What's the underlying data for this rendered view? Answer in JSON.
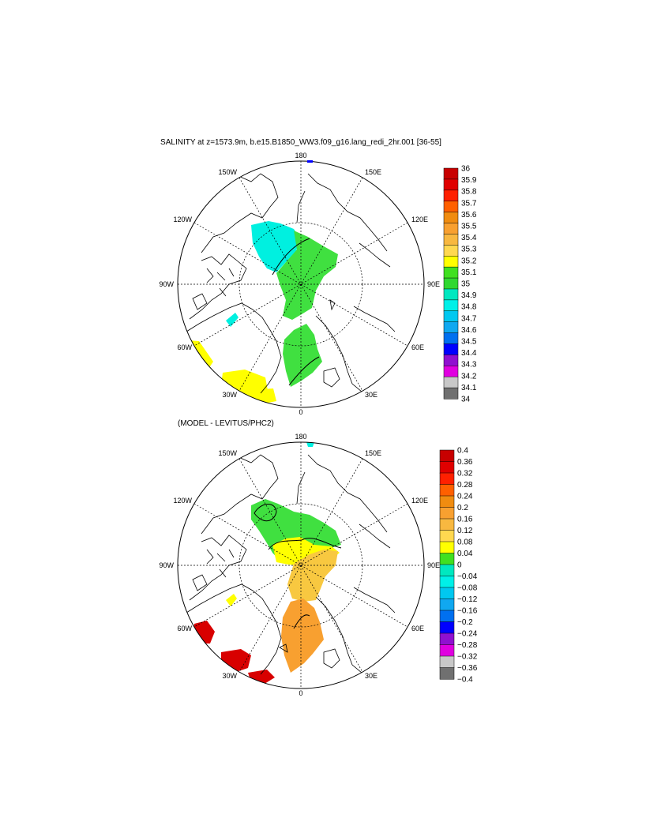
{
  "top_panel": {
    "title": "SALINITY at z=1573.9m, b.e15.B1850_WW3.f09_g16.lang_redi_2hr.001 [36-55]",
    "lon_labels": {
      "n": "180",
      "s": "0",
      "w": "90W",
      "e": "90E",
      "nw1": "150W",
      "nw2": "120W",
      "sw1": "60W",
      "sw2": "30W",
      "ne1": "150E",
      "ne2": "120E",
      "se1": "60E",
      "se2": "30E"
    },
    "colorbar": {
      "labels": [
        "36",
        "35.9",
        "35.8",
        "35.7",
        "35.6",
        "35.5",
        "35.4",
        "35.3",
        "35.2",
        "35.1",
        "35",
        "34.9",
        "34.8",
        "34.7",
        "34.6",
        "34.5",
        "34.4",
        "34.3",
        "34.2",
        "34.1",
        "34"
      ],
      "colors": [
        "#c80000",
        "#e00000",
        "#ff2000",
        "#ff6000",
        "#f08c10",
        "#f8a030",
        "#f8b840",
        "#ffd850",
        "#ffff00",
        "#40e020",
        "#30d830",
        "#00e8c0",
        "#00f0e8",
        "#00c8f0",
        "#10a8f0",
        "#0070f0",
        "#0000ff",
        "#9010d0",
        "#e000e0",
        "#c8c8c8",
        "#707070"
      ]
    }
  },
  "bottom_panel": {
    "title": "(MODEL - LEVITUS/PHC2)",
    "lon_labels": {
      "n": "180",
      "s": "0",
      "w": "90W",
      "e": "90E",
      "nw1": "150W",
      "nw2": "120W",
      "sw1": "60W",
      "sw2": "30W",
      "ne1": "150E",
      "ne2": "120E",
      "se1": "60E",
      "se2": "30E"
    },
    "colorbar": {
      "labels": [
        "0.4",
        "0.36",
        "0.32",
        "0.28",
        "0.24",
        "0.2",
        "0.16",
        "0.12",
        "0.08",
        "0.04",
        "0",
        "−0.04",
        "−0.08",
        "−0.12",
        "−0.16",
        "−0.2",
        "−0.24",
        "−0.28",
        "−0.32",
        "−0.36",
        "−0.4"
      ],
      "colors": [
        "#c80000",
        "#e00000",
        "#ff2000",
        "#ff6000",
        "#f08c10",
        "#f8a030",
        "#f8b840",
        "#ffd850",
        "#ffff00",
        "#40e020",
        "#00e8c0",
        "#00f0e8",
        "#00c8f0",
        "#10a8f0",
        "#0070f0",
        "#0000ff",
        "#9010d0",
        "#e000e0",
        "#c8c8c8",
        "#707070"
      ]
    }
  },
  "colors": {
    "cyan_field": "#00f0e0",
    "green_field": "#40e040",
    "yellow_field": "#ffff00",
    "gold_field": "#f8c840",
    "orange_field": "#f8a030",
    "red_field": "#d80000"
  }
}
